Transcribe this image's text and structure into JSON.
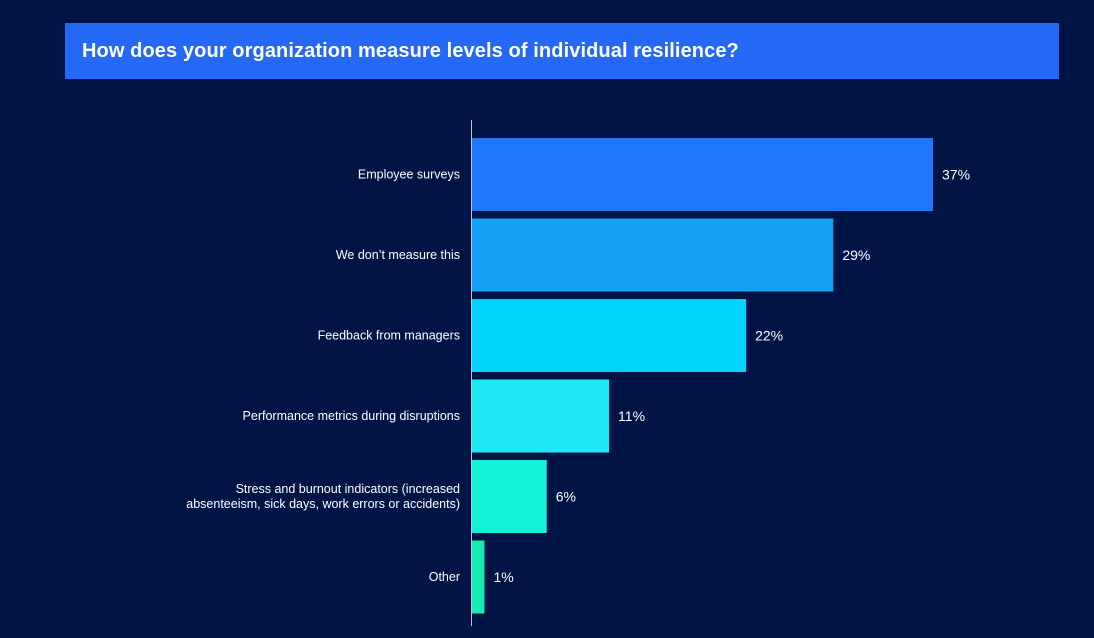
{
  "header": {
    "title": "How does your organization measure levels of individual resilience?"
  },
  "chart_data": {
    "type": "bar",
    "orientation": "horizontal",
    "title": "How does your organization measure levels of individual resilience?",
    "xlabel": "",
    "ylabel": "",
    "grid": false,
    "value_suffix": "%",
    "categories": [
      [
        "Employee surveys"
      ],
      [
        "We don’t measure this"
      ],
      [
        "Feedback from managers"
      ],
      [
        "Performance metrics during disruptions"
      ],
      [
        "Stress and burnout indicators (increased",
        "absenteeism, sick days, work errors or accidents)"
      ],
      [
        "Other"
      ]
    ],
    "values": [
      37,
      29,
      22,
      11,
      6,
      1
    ],
    "value_labels": [
      "37%",
      "29%",
      "22%",
      "11%",
      "6%",
      "1%"
    ],
    "colors": [
      "#1f78fa",
      "#13a1f5",
      "#00d4fc",
      "#1ee8f3",
      "#13f1d6",
      "#18ebb0"
    ],
    "xlim": [
      0,
      37
    ]
  }
}
